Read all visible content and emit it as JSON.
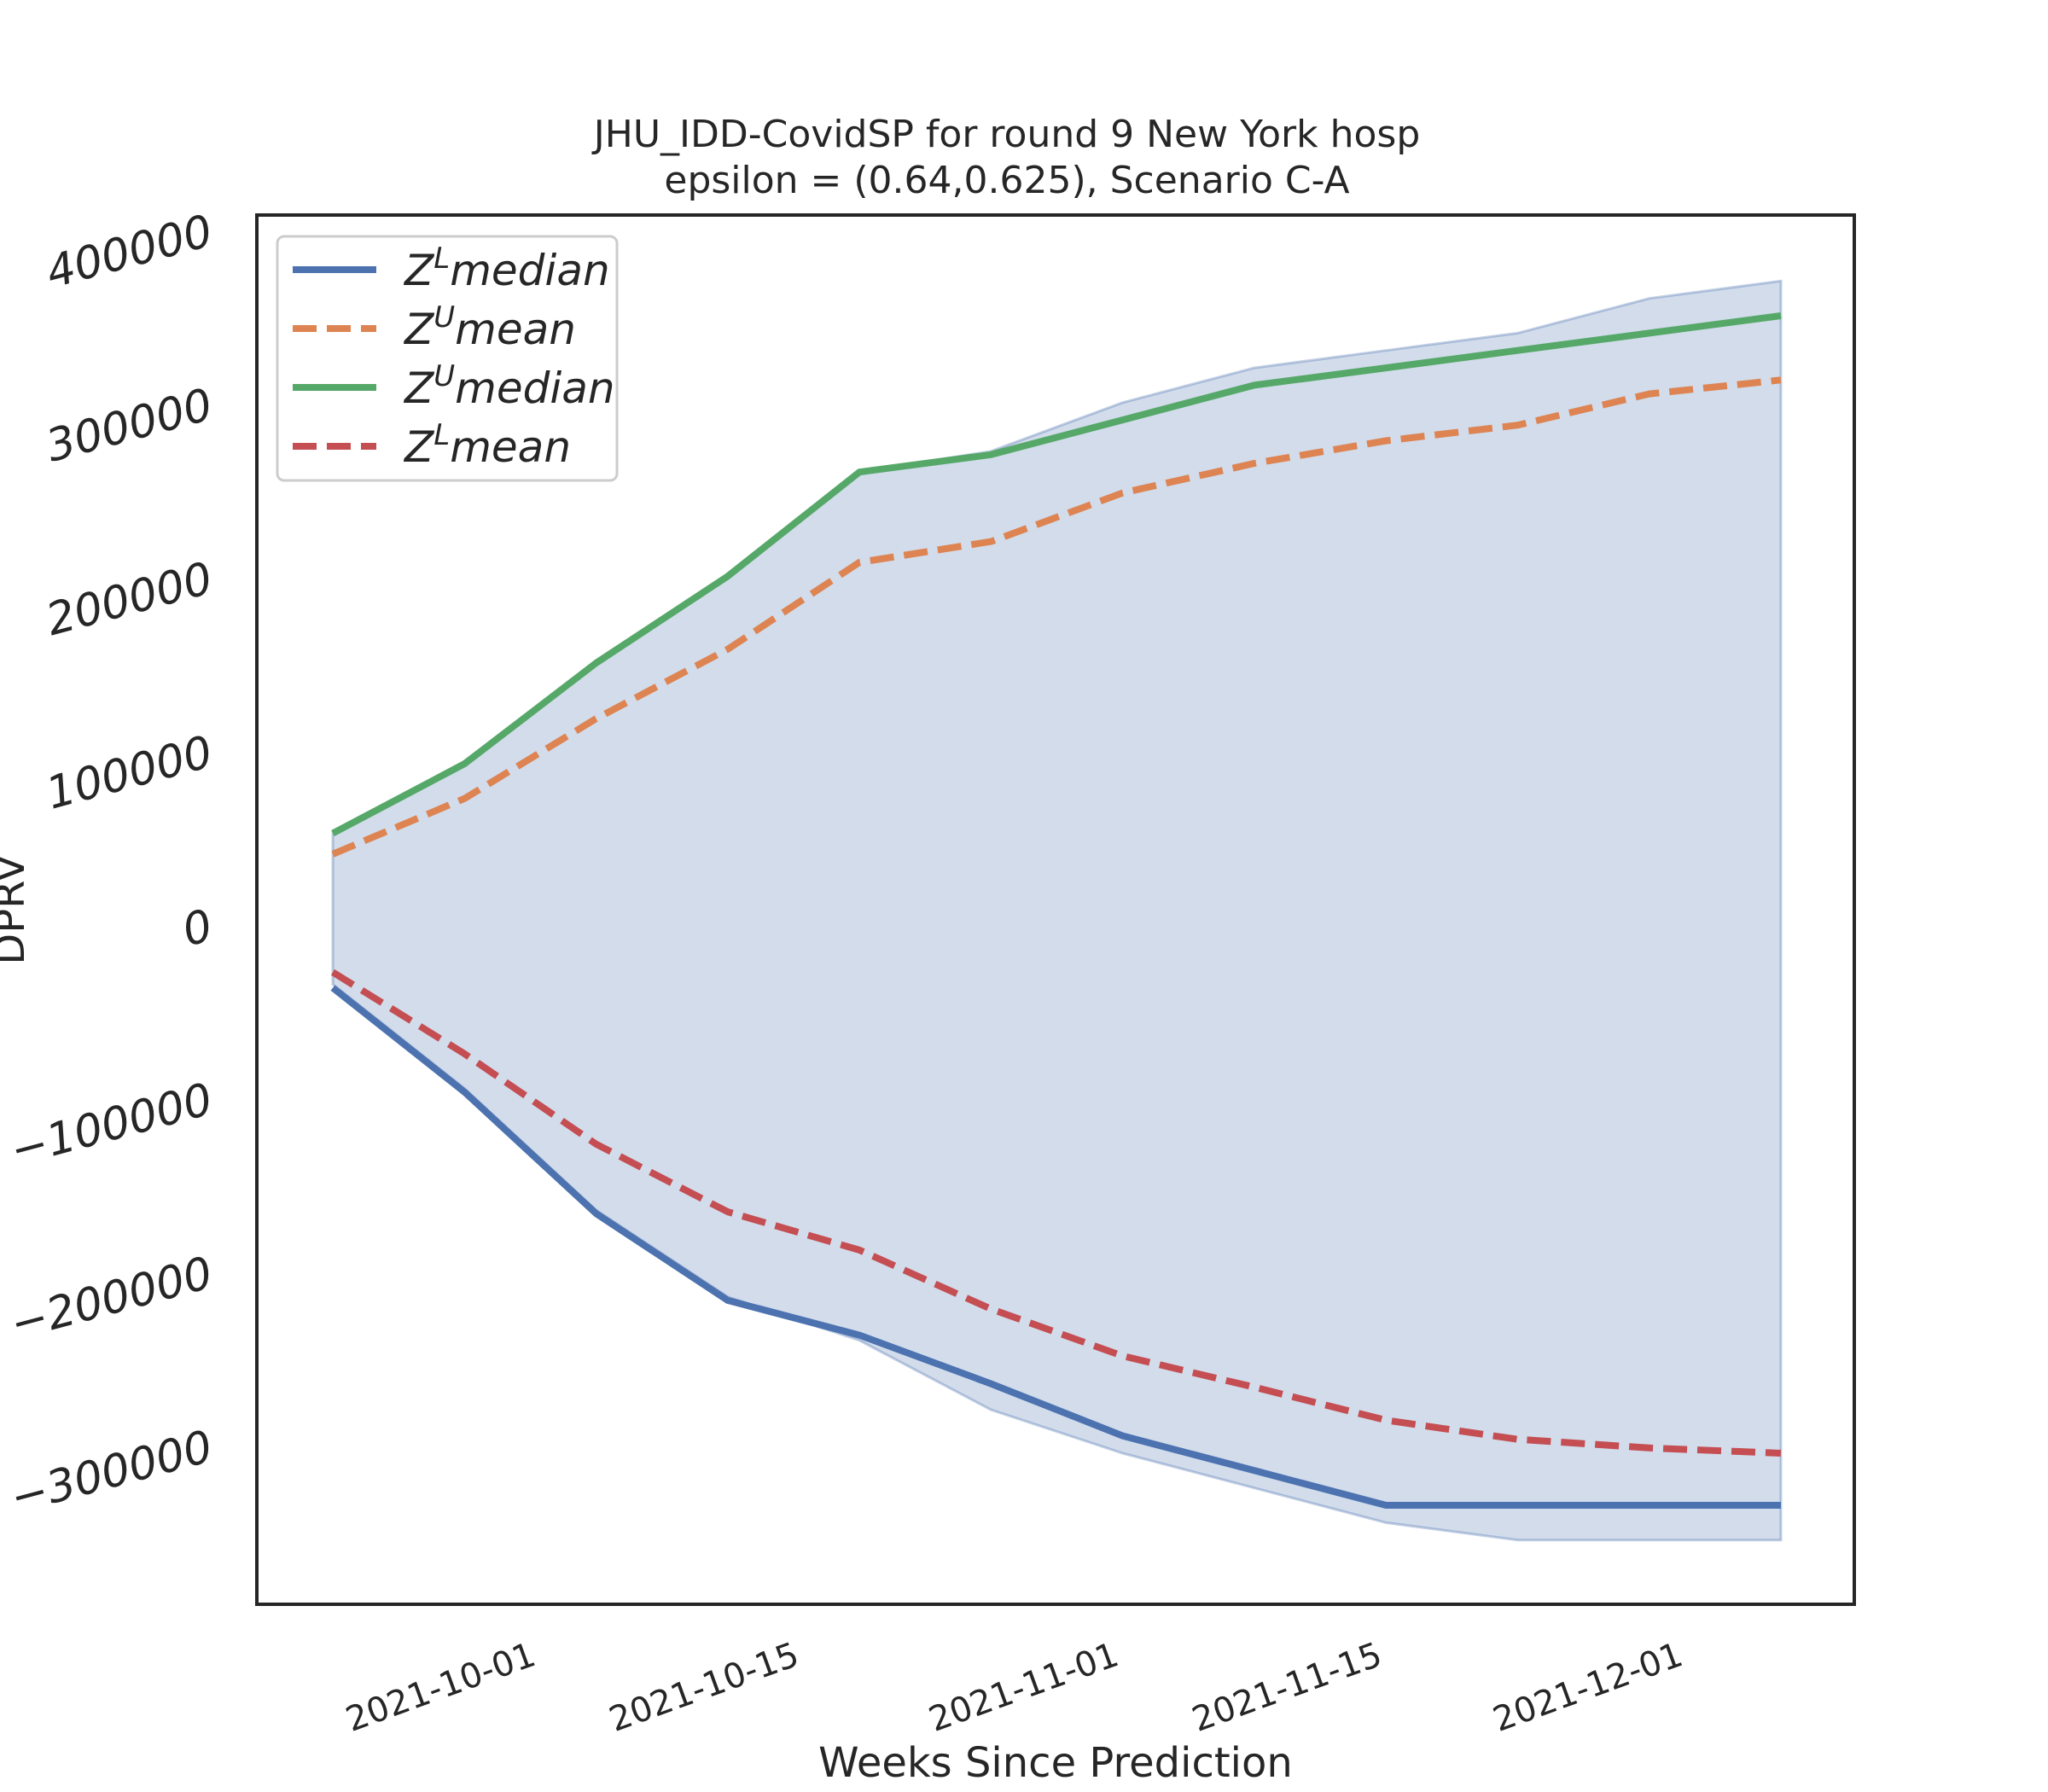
{
  "chart_data": {
    "type": "line",
    "title": "JHU_IDD-CovidSP for round 9 New York  hosp",
    "subtitle": "epsilon = (0.64,0.625), Scenario C-A",
    "xlabel": "Weeks Since Prediction",
    "ylabel": "DPRV",
    "x": [
      "2021-09-25",
      "2021-10-02",
      "2021-10-09",
      "2021-10-16",
      "2021-10-23",
      "2021-10-30",
      "2021-11-06",
      "2021-11-13",
      "2021-11-20",
      "2021-11-27",
      "2021-12-04",
      "2021-12-11"
    ],
    "x_ticks": [
      "2021-10-01",
      "2021-10-15",
      "2021-11-01",
      "2021-11-15",
      "2021-12-01"
    ],
    "y_ticks": [
      -300000,
      -200000,
      -100000,
      0,
      100000,
      200000,
      300000,
      400000
    ],
    "y_tick_labels": [
      "−300000",
      "−200000",
      "−100000",
      "0",
      "100000",
      "200000",
      "300000",
      "400000"
    ],
    "ylim": [
      -392000,
      408000
    ],
    "grid": false,
    "legend_position": "upper-left",
    "band": {
      "upper": [
        52000,
        92000,
        150000,
        200000,
        260000,
        272000,
        300000,
        320000,
        330000,
        340000,
        360000,
        370000
      ],
      "lower": [
        -35000,
        -95000,
        -165000,
        -215000,
        -240000,
        -280000,
        -305000,
        -325000,
        -345000,
        -355000,
        -355000,
        -355000
      ],
      "color": "#4c72b0",
      "opacity": 0.25
    },
    "series": [
      {
        "name": "median",
        "sup": "L",
        "style": "solid",
        "color": "#4c72b0",
        "values": [
          -37000,
          -97000,
          -167000,
          -217000,
          -237000,
          -265000,
          -295000,
          -315000,
          -335000,
          -335000,
          -335000,
          -335000
        ]
      },
      {
        "name": "mean",
        "sup": "U",
        "style": "dashed",
        "color": "#dd8452",
        "values": [
          40000,
          72000,
          118000,
          158000,
          208000,
          220000,
          248000,
          265000,
          278000,
          287000,
          305000,
          313000
        ]
      },
      {
        "name": "median",
        "sup": "U",
        "style": "solid",
        "color": "#55a868",
        "values": [
          52000,
          92000,
          150000,
          200000,
          260000,
          270000,
          290000,
          310000,
          320000,
          330000,
          340000,
          350000
        ]
      },
      {
        "name": "mean",
        "sup": "L",
        "style": "dashed",
        "color": "#c44e52",
        "values": [
          -28000,
          -75000,
          -127000,
          -166000,
          -188000,
          -222000,
          -249000,
          -267000,
          -286000,
          -297000,
          -302000,
          -305000
        ]
      }
    ]
  }
}
